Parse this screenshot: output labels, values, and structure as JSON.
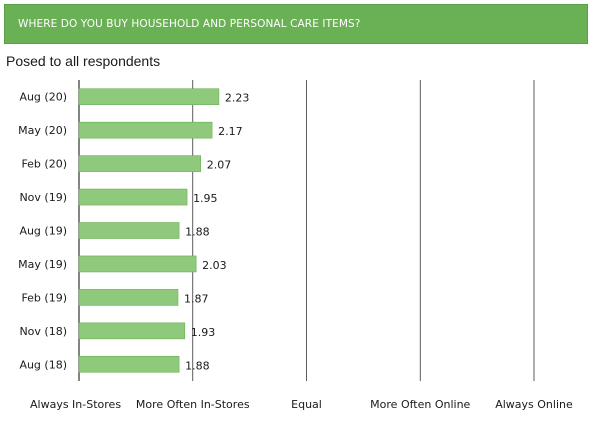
{
  "header": {
    "title": "WHERE DO YOU BUY HOUSEHOLD AND PERSONAL CARE ITEMS?",
    "subtitle": "Posed to all respondents"
  },
  "colors": {
    "banner": "#6ab055",
    "bar": "#8fc97c",
    "bar_border": "#6ab055",
    "gridline": "#333333"
  },
  "chart_data": {
    "type": "bar",
    "orientation": "horizontal",
    "categories": [
      "Aug (20)",
      "May (20)",
      "Feb (20)",
      "Nov (19)",
      "Aug (19)",
      "May (19)",
      "Feb (19)",
      "Nov (18)",
      "Aug (18)"
    ],
    "values": [
      2.23,
      2.17,
      2.07,
      1.95,
      1.88,
      2.03,
      1.87,
      1.93,
      1.88
    ],
    "data_labels": [
      "2.23",
      "2.17",
      "2.07",
      "1.95",
      "1.88",
      "2.03",
      "1.87",
      "1.93",
      "1.88"
    ],
    "x_tick_labels": [
      "Always In-Stores",
      "More Often In-Stores",
      "Equal",
      "More Often Online",
      "Always Online"
    ],
    "xlim": [
      1,
      5
    ],
    "grid": true,
    "legend": "none"
  }
}
